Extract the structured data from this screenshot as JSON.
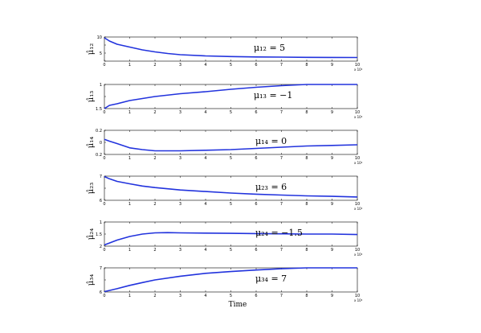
{
  "chart_data": {
    "type": "line",
    "xlabel": "Time",
    "x_tick_labels": [
      "0",
      "1",
      "2",
      "3",
      "4",
      "5",
      "6",
      "7",
      "8",
      "9",
      "10"
    ],
    "x_multiplier": "x 10⁴",
    "xlim": [
      0,
      10
    ],
    "line_color": "#2233dd",
    "panels": [
      {
        "ylabel": "μ̂₁₂",
        "annotation": "μ₁₂ = 5",
        "ylim": [
          4,
          10
        ],
        "y_tick_labels": [
          "",
          "5",
          "",
          "10"
        ],
        "x": [
          0,
          0.2,
          0.5,
          1,
          1.5,
          2,
          2.5,
          3,
          4,
          5,
          6,
          7,
          8,
          9,
          10
        ],
        "y": [
          9.8,
          9.0,
          8.2,
          7.5,
          6.8,
          6.3,
          5.9,
          5.6,
          5.3,
          5.15,
          5.05,
          5.0,
          4.95,
          4.92,
          4.9
        ]
      },
      {
        "ylabel": "μ̂₁₃",
        "annotation": "μ₁₃ = −1",
        "ylim": [
          -1.6,
          -1
        ],
        "y_tick_labels": [
          "1.5",
          "",
          "1"
        ],
        "x": [
          0,
          0.2,
          0.5,
          1,
          1.5,
          2,
          3,
          4,
          5,
          6,
          7,
          8,
          9,
          10
        ],
        "y": [
          -1.6,
          -1.52,
          -1.48,
          -1.4,
          -1.35,
          -1.3,
          -1.23,
          -1.18,
          -1.12,
          -1.07,
          -1.03,
          -1.0,
          -1.0,
          -1.0
        ]
      },
      {
        "ylabel": "μ̂₁₄",
        "annotation": "μ₁₄ = 0",
        "ylim": [
          -0.2,
          0.2
        ],
        "y_tick_labels": [
          "0.2",
          "0",
          "0.2"
        ],
        "x": [
          0,
          0.2,
          0.5,
          1,
          1.5,
          2,
          3,
          4,
          5,
          6,
          7,
          8,
          9,
          10
        ],
        "y": [
          0.05,
          0.02,
          -0.02,
          -0.09,
          -0.12,
          -0.14,
          -0.14,
          -0.13,
          -0.12,
          -0.1,
          -0.08,
          -0.06,
          -0.05,
          -0.04
        ]
      },
      {
        "ylabel": "μ̂₂₃",
        "annotation": "μ₂₃ = 6",
        "ylim": [
          5.8,
          6.9
        ],
        "y_tick_labels": [
          "6",
          "",
          "7"
        ],
        "x": [
          0,
          0.2,
          0.5,
          1,
          1.5,
          2,
          3,
          4,
          5,
          6,
          7,
          8,
          9,
          10
        ],
        "y": [
          6.88,
          6.78,
          6.66,
          6.55,
          6.45,
          6.38,
          6.27,
          6.2,
          6.13,
          6.08,
          6.04,
          6.0,
          5.98,
          5.95
        ]
      },
      {
        "ylabel": "μ̂₂₄",
        "annotation": "μ₂₄ = −1.5",
        "ylim": [
          -2,
          -1
        ],
        "y_tick_labels": [
          "2",
          "1.5",
          "1"
        ],
        "x": [
          0,
          0.2,
          0.5,
          1,
          1.5,
          2,
          2.5,
          3,
          4,
          5,
          6,
          7,
          8,
          9,
          10
        ],
        "y": [
          -1.95,
          -1.87,
          -1.75,
          -1.6,
          -1.5,
          -1.45,
          -1.44,
          -1.45,
          -1.46,
          -1.47,
          -1.48,
          -1.49,
          -1.5,
          -1.5,
          -1.52
        ]
      },
      {
        "ylabel": "μ̂₃₄",
        "annotation": "μ₃₄ = 7",
        "ylim": [
          5.9,
          7
        ],
        "y_tick_labels": [
          "6",
          "",
          "7"
        ],
        "x": [
          0,
          0.2,
          0.5,
          1,
          1.5,
          2,
          3,
          4,
          5,
          6,
          7,
          8,
          9,
          10
        ],
        "y": [
          5.92,
          5.97,
          6.05,
          6.2,
          6.33,
          6.45,
          6.62,
          6.75,
          6.83,
          6.9,
          6.96,
          7.0,
          7.0,
          7.0
        ]
      }
    ]
  }
}
